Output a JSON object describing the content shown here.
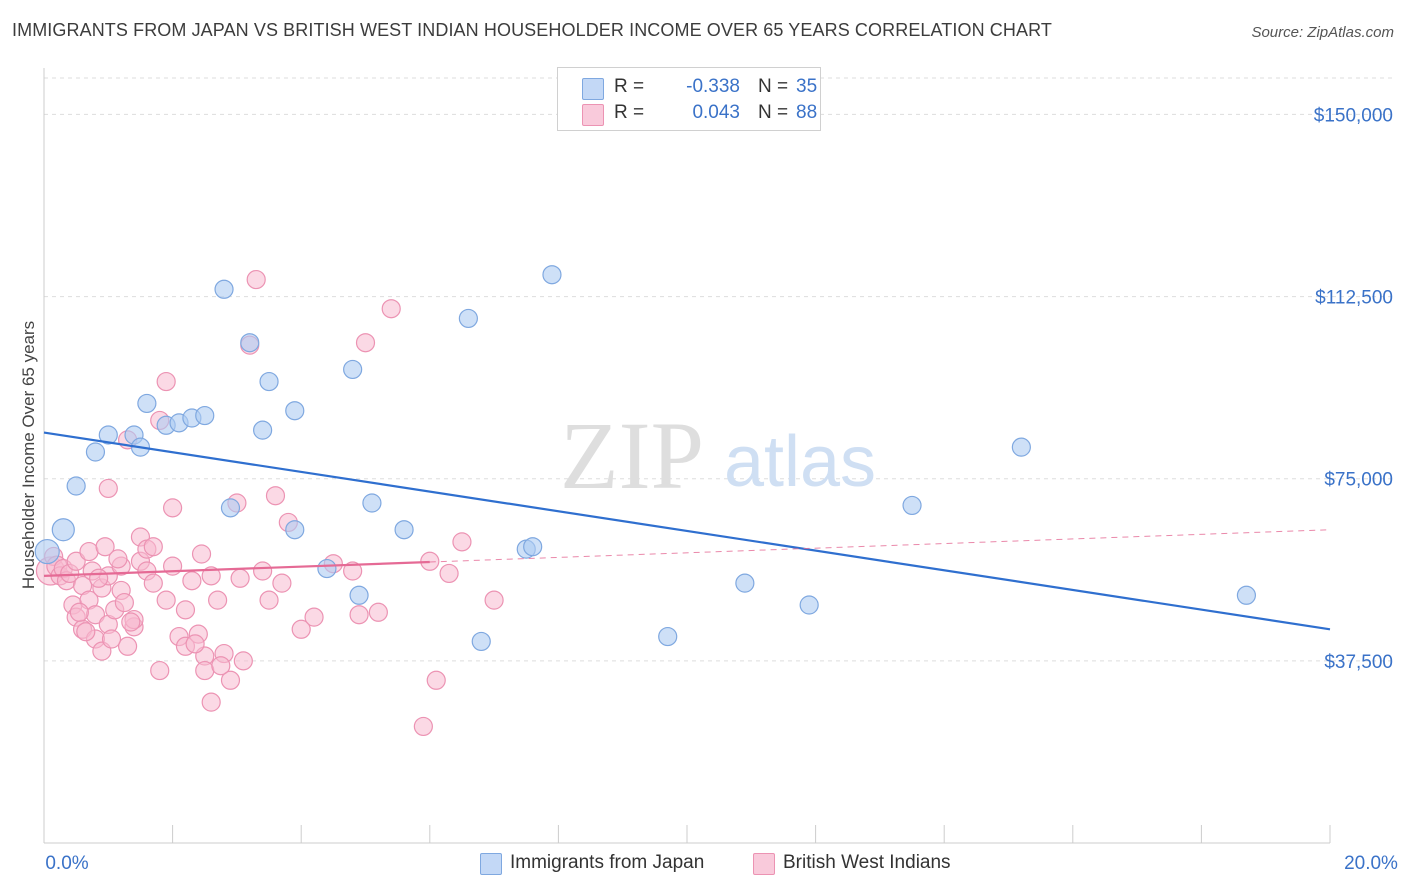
{
  "header": {
    "title": "IMMIGRANTS FROM JAPAN VS BRITISH WEST INDIAN HOUSEHOLDER INCOME OVER 65 YEARS CORRELATION CHART",
    "source": "Source: ZipAtlas.com"
  },
  "watermark": {
    "zip": "ZIP",
    "atlas": "atlas"
  },
  "legend_top": [
    {
      "r_label": "R =",
      "r_value": "-0.338",
      "n_label": "N =",
      "n_value": "35"
    },
    {
      "r_label": "R =",
      "r_value": "0.043",
      "n_label": "N =",
      "n_value": "88"
    }
  ],
  "legend_bottom": [
    {
      "label": "Immigrants from Japan"
    },
    {
      "label": "British West Indians"
    }
  ],
  "colors": {
    "japan_fill": "#aecbf2",
    "japan_stroke": "#7fa8e0",
    "japan_line": "#2f6fcf",
    "bwi_fill": "#f7b9cf",
    "bwi_stroke": "#ec93b3",
    "bwi_line": "#e56a95",
    "tick_label": "#3a72c8",
    "grid": "#dddddd"
  },
  "chart_data": {
    "type": "scatter",
    "title": "IMMIGRANTS FROM JAPAN VS BRITISH WEST INDIAN HOUSEHOLDER INCOME OVER 65 YEARS CORRELATION CHART",
    "xlabel": "",
    "ylabel": "Householder Income Over 65 years",
    "xlim": [
      0,
      20
    ],
    "ylim": [
      0,
      157500
    ],
    "x_tick_labels": [
      "0.0%",
      "20.0%"
    ],
    "y_tick_values": [
      37500,
      75000,
      112500,
      150000
    ],
    "y_tick_labels": [
      "$37,500",
      "$75,000",
      "$112,500",
      "$150,000"
    ],
    "grid": true,
    "legend_position": "top-center",
    "series": [
      {
        "name": "Immigrants from Japan",
        "r": -0.338,
        "n": 35,
        "trend": {
          "x0": 0,
          "y0": 84500,
          "x1": 20,
          "y1": 44000,
          "solid_until": 20
        },
        "points": [
          [
            0.05,
            60000,
            12
          ],
          [
            0.3,
            64500,
            11
          ],
          [
            0.5,
            73500,
            9
          ],
          [
            0.8,
            80500,
            9
          ],
          [
            1.0,
            84000,
            9
          ],
          [
            1.4,
            84000,
            9
          ],
          [
            1.5,
            81500,
            9
          ],
          [
            1.6,
            90500,
            9
          ],
          [
            1.9,
            86000,
            9
          ],
          [
            2.1,
            86500,
            9
          ],
          [
            2.3,
            87500,
            9
          ],
          [
            2.5,
            88000,
            9
          ],
          [
            2.8,
            114000,
            9
          ],
          [
            2.9,
            69000,
            9
          ],
          [
            3.2,
            103000,
            9
          ],
          [
            3.4,
            85000,
            9
          ],
          [
            3.5,
            95000,
            9
          ],
          [
            3.9,
            89000,
            9
          ],
          [
            3.9,
            64500,
            9
          ],
          [
            4.4,
            56500,
            9
          ],
          [
            4.8,
            97500,
            9
          ],
          [
            4.9,
            51000,
            9
          ],
          [
            5.1,
            70000,
            9
          ],
          [
            5.6,
            64500,
            9
          ],
          [
            6.6,
            108000,
            9
          ],
          [
            6.8,
            41500,
            9
          ],
          [
            7.5,
            60500,
            9
          ],
          [
            7.6,
            61000,
            9
          ],
          [
            7.9,
            117000,
            9
          ],
          [
            9.7,
            42500,
            9
          ],
          [
            10.9,
            53500,
            9
          ],
          [
            11.9,
            49000,
            9
          ],
          [
            13.5,
            69500,
            9
          ],
          [
            15.2,
            81500,
            9
          ],
          [
            18.7,
            51000,
            9
          ]
        ]
      },
      {
        "name": "British West Indians",
        "r": 0.043,
        "n": 88,
        "trend": {
          "x0": 0,
          "y0": 55000,
          "x1": 20,
          "y1": 64500,
          "solid_until": 6
        },
        "points": [
          [
            0.1,
            56000,
            14
          ],
          [
            0.15,
            59000,
            9
          ],
          [
            0.2,
            57000,
            10
          ],
          [
            0.25,
            55000,
            9
          ],
          [
            0.3,
            56500,
            9
          ],
          [
            0.35,
            54000,
            9
          ],
          [
            0.4,
            55500,
            9
          ],
          [
            0.45,
            49000,
            9
          ],
          [
            0.5,
            46500,
            9
          ],
          [
            0.5,
            58000,
            9
          ],
          [
            0.6,
            53000,
            9
          ],
          [
            0.6,
            44000,
            9
          ],
          [
            0.7,
            50000,
            9
          ],
          [
            0.7,
            60000,
            9
          ],
          [
            0.8,
            42000,
            9
          ],
          [
            0.8,
            47000,
            9
          ],
          [
            0.9,
            52500,
            9
          ],
          [
            0.9,
            39500,
            9
          ],
          [
            1.0,
            45000,
            9
          ],
          [
            1.0,
            55000,
            9
          ],
          [
            1.0,
            73000,
            9
          ],
          [
            1.1,
            48000,
            9
          ],
          [
            1.2,
            52000,
            9
          ],
          [
            1.2,
            57000,
            9
          ],
          [
            1.3,
            83000,
            9
          ],
          [
            1.3,
            40500,
            9
          ],
          [
            1.4,
            44500,
            9
          ],
          [
            1.4,
            46000,
            9
          ],
          [
            1.5,
            63000,
            9
          ],
          [
            1.5,
            58000,
            9
          ],
          [
            1.6,
            60500,
            9
          ],
          [
            1.6,
            56000,
            9
          ],
          [
            1.7,
            61000,
            9
          ],
          [
            1.7,
            53500,
            9
          ],
          [
            1.8,
            35500,
            9
          ],
          [
            1.8,
            87000,
            9
          ],
          [
            1.9,
            95000,
            9
          ],
          [
            1.9,
            50000,
            9
          ],
          [
            2.0,
            57000,
            9
          ],
          [
            2.0,
            69000,
            9
          ],
          [
            2.1,
            42500,
            9
          ],
          [
            2.2,
            40500,
            9
          ],
          [
            2.2,
            48000,
            9
          ],
          [
            2.3,
            54000,
            9
          ],
          [
            2.4,
            43000,
            9
          ],
          [
            2.5,
            38500,
            9
          ],
          [
            2.5,
            35500,
            9
          ],
          [
            2.6,
            29000,
            9
          ],
          [
            2.6,
            55000,
            9
          ],
          [
            2.7,
            50000,
            9
          ],
          [
            2.8,
            39000,
            9
          ],
          [
            2.9,
            33500,
            9
          ],
          [
            3.0,
            70000,
            9
          ],
          [
            3.1,
            37500,
            9
          ],
          [
            3.2,
            102500,
            9
          ],
          [
            3.3,
            116000,
            9
          ],
          [
            3.4,
            56000,
            9
          ],
          [
            3.5,
            50000,
            9
          ],
          [
            3.6,
            71500,
            9
          ],
          [
            3.7,
            53500,
            9
          ],
          [
            3.8,
            66000,
            9
          ],
          [
            4.0,
            44000,
            9
          ],
          [
            4.2,
            46500,
            9
          ],
          [
            4.5,
            57500,
            9
          ],
          [
            4.8,
            56000,
            9
          ],
          [
            4.9,
            47000,
            9
          ],
          [
            5.0,
            103000,
            9
          ],
          [
            5.2,
            47500,
            9
          ],
          [
            5.4,
            110000,
            9
          ],
          [
            5.9,
            24000,
            9
          ],
          [
            6.0,
            58000,
            9
          ],
          [
            6.1,
            33500,
            9
          ],
          [
            6.3,
            55500,
            9
          ],
          [
            6.5,
            62000,
            9
          ],
          [
            7.0,
            50000,
            9
          ],
          [
            0.55,
            47500,
            9
          ],
          [
            0.65,
            43500,
            9
          ],
          [
            0.75,
            56000,
            9
          ],
          [
            0.85,
            54500,
            9
          ],
          [
            0.95,
            61000,
            9
          ],
          [
            1.05,
            42000,
            9
          ],
          [
            1.15,
            58500,
            9
          ],
          [
            1.25,
            49500,
            9
          ],
          [
            1.35,
            45500,
            9
          ],
          [
            2.35,
            41000,
            9
          ],
          [
            2.45,
            59500,
            9
          ],
          [
            2.75,
            36500,
            9
          ],
          [
            3.05,
            54500,
            9
          ]
        ]
      }
    ]
  }
}
